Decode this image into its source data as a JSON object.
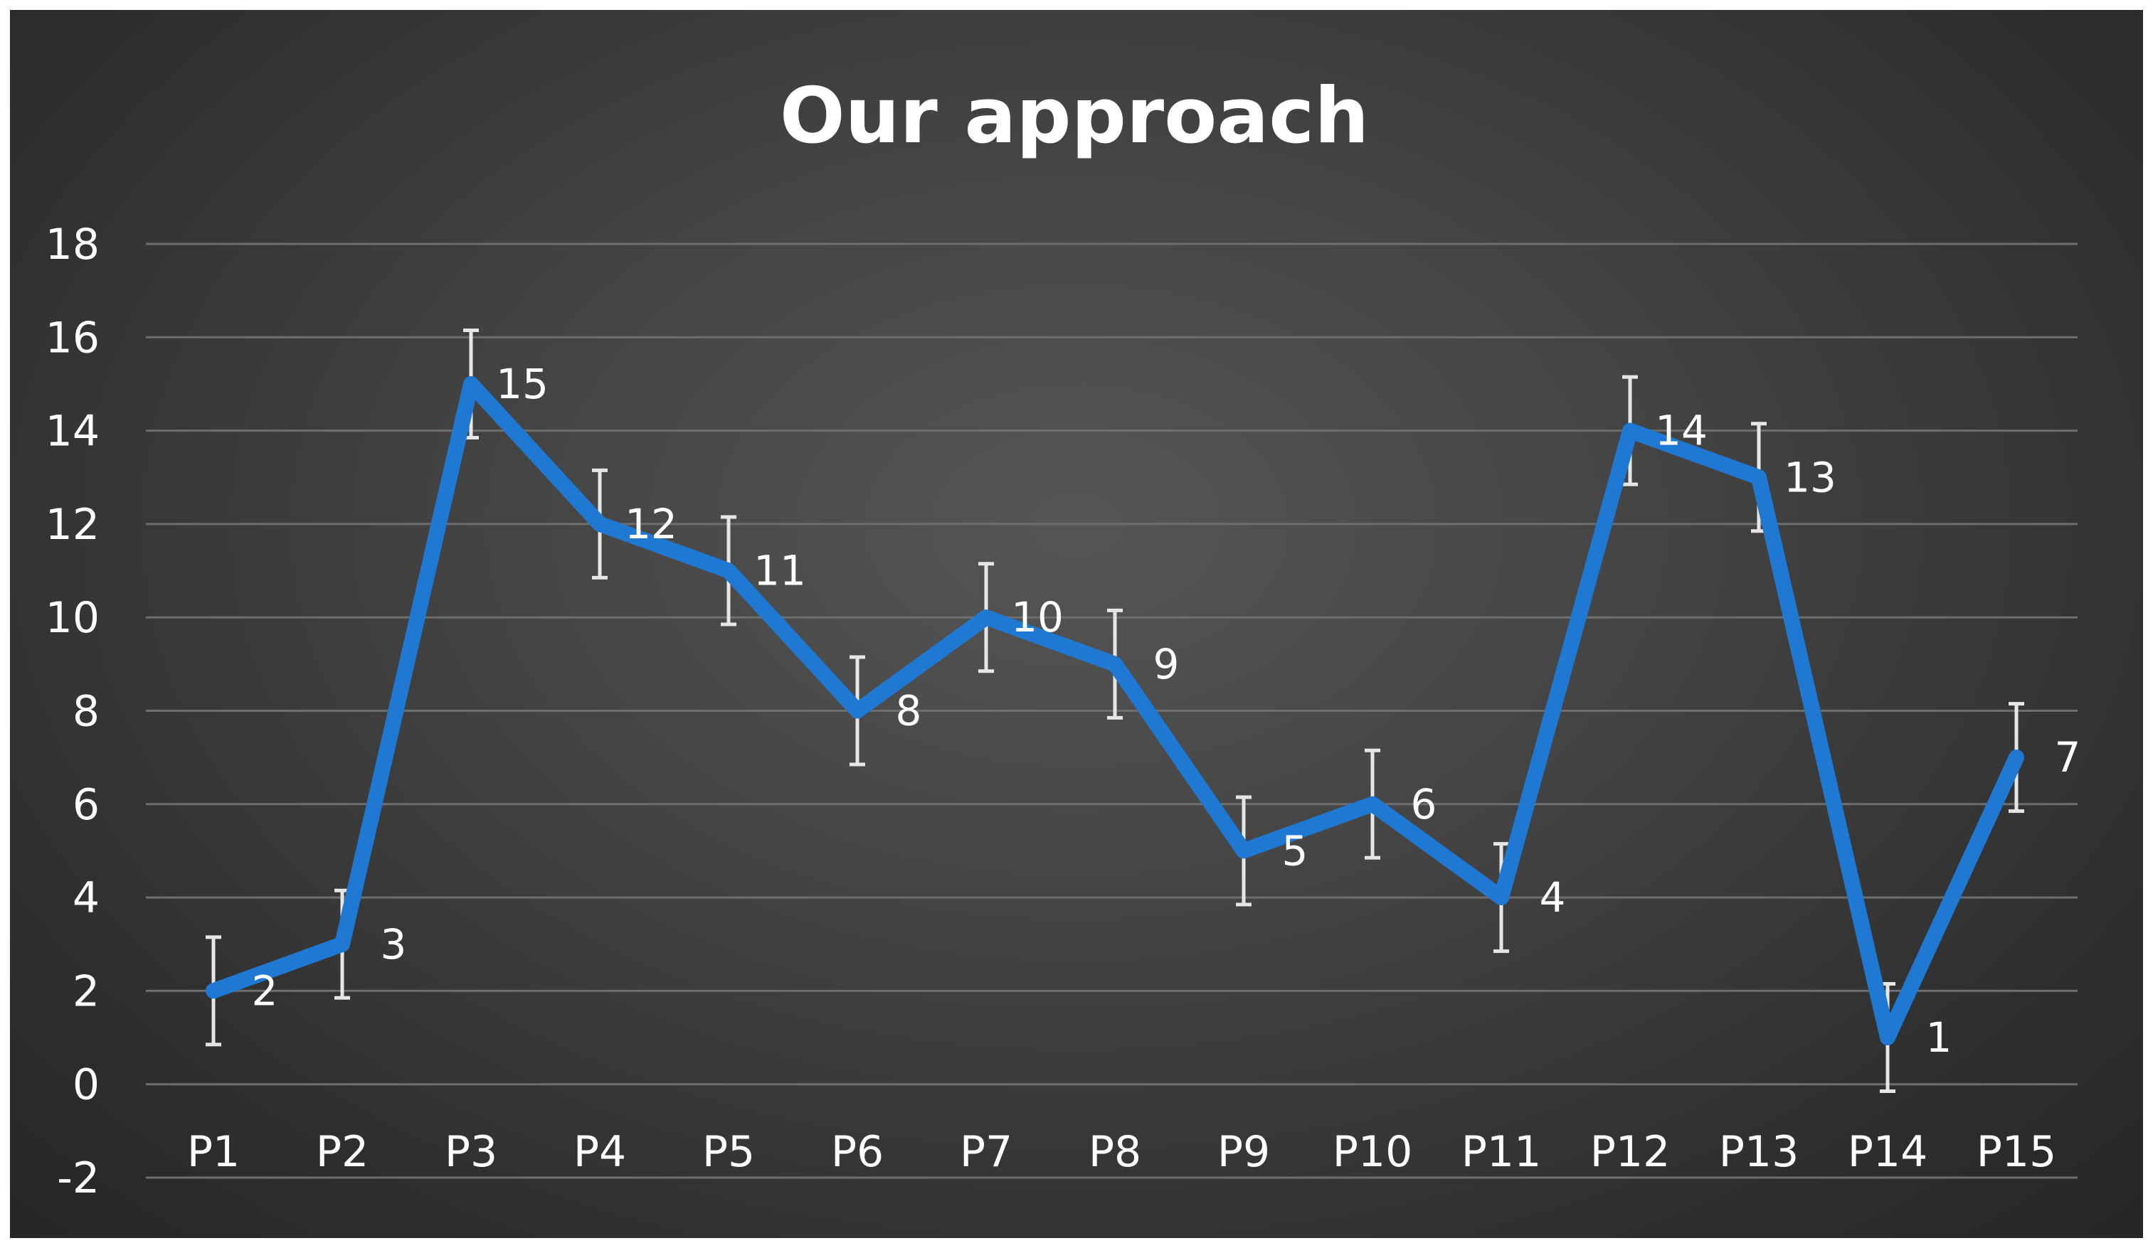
{
  "chart_data": {
    "type": "line",
    "title": "Our approach",
    "categories": [
      "P1",
      "P2",
      "P3",
      "P4",
      "P5",
      "P6",
      "P7",
      "P8",
      "P9",
      "P10",
      "P11",
      "P12",
      "P13",
      "P14",
      "P15"
    ],
    "series": [
      {
        "values": [
          2,
          3,
          15,
          12,
          11,
          8,
          10,
          9,
          5,
          6,
          4,
          14,
          13,
          1,
          7
        ]
      }
    ],
    "error_bar": 1.15,
    "ylim": [
      -2,
      18
    ],
    "yticks": [
      -2,
      0,
      2,
      4,
      6,
      8,
      10,
      12,
      14,
      16,
      18
    ],
    "grid": true,
    "data_labels": true,
    "xlabel": "",
    "ylabel": "",
    "colors": {
      "line": "#1f78d1",
      "grid": "#6e6e6e",
      "error_bars": "#e6e6e6",
      "text": "#ffffff",
      "background": "#3c3c3c"
    }
  }
}
